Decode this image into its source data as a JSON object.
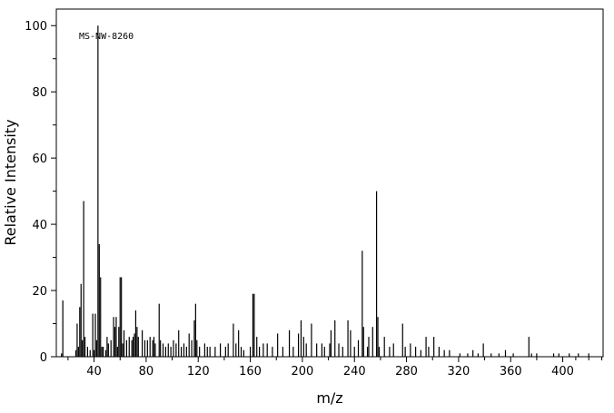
{
  "chart_data": {
    "type": "stem",
    "annotation": "MS-NW-8260",
    "xlabel": "m/z",
    "ylabel": "Relative Intensity",
    "color": "#000000",
    "xlim": [
      11,
      431
    ],
    "ylim": [
      0,
      105
    ],
    "xticks": [
      40,
      80,
      120,
      160,
      200,
      240,
      280,
      320,
      360,
      400
    ],
    "xminorticks": [
      20,
      60,
      100,
      140,
      180,
      220,
      260,
      300,
      340,
      380,
      410,
      420,
      430
    ],
    "yticks": [
      0,
      20,
      40,
      60,
      80,
      100
    ],
    "yminorticks": [
      10,
      30,
      50,
      70,
      90
    ],
    "x": [
      15,
      16,
      26,
      27,
      28,
      29,
      30,
      31,
      32,
      33,
      35,
      37,
      39,
      40,
      41,
      42,
      43,
      44,
      45,
      46,
      47,
      49,
      50,
      51,
      53,
      55,
      56,
      57,
      58,
      59,
      60,
      61,
      62,
      63,
      65,
      67,
      69,
      70,
      71,
      72,
      73,
      74,
      77,
      79,
      81,
      83,
      85,
      86,
      87,
      90,
      91,
      93,
      95,
      97,
      99,
      101,
      103,
      105,
      107,
      109,
      111,
      113,
      115,
      117,
      118,
      119,
      121,
      125,
      127,
      129,
      133,
      137,
      141,
      143,
      147,
      149,
      151,
      153,
      155,
      160,
      162,
      163,
      165,
      167,
      170,
      173,
      177,
      181,
      185,
      190,
      193,
      197,
      199,
      201,
      203,
      207,
      211,
      215,
      217,
      221,
      222,
      225,
      228,
      231,
      235,
      237,
      240,
      243,
      246,
      247,
      250,
      251,
      254,
      257,
      258,
      259,
      263,
      267,
      270,
      277,
      279,
      283,
      287,
      291,
      295,
      297,
      301,
      305,
      309,
      313,
      321,
      327,
      331,
      335,
      339,
      345,
      351,
      356,
      362,
      374,
      376,
      380,
      393,
      397,
      405,
      412,
      420
    ],
    "values": [
      1,
      17,
      2,
      10,
      3,
      15,
      22,
      5,
      47,
      6,
      3,
      2,
      13,
      2,
      13,
      5,
      100,
      34,
      24,
      3,
      3,
      2,
      6,
      4,
      5,
      12,
      9,
      12,
      3,
      9,
      24,
      24,
      4,
      8,
      5,
      6,
      5,
      6,
      7,
      14,
      9,
      6,
      8,
      5,
      5,
      6,
      5,
      6,
      4,
      16,
      5,
      4,
      3,
      4,
      3,
      5,
      4,
      8,
      3,
      4,
      3,
      7,
      5,
      11,
      16,
      5,
      3,
      4,
      3,
      3,
      3,
      4,
      3,
      4,
      10,
      4,
      8,
      3,
      2,
      3,
      19,
      19,
      6,
      3,
      4,
      4,
      3,
      7,
      3,
      8,
      3,
      7,
      11,
      6,
      4,
      10,
      4,
      4,
      3,
      4,
      8,
      11,
      4,
      3,
      11,
      8,
      3,
      5,
      32,
      9,
      3,
      6,
      9,
      50,
      12,
      3,
      6,
      3,
      4,
      10,
      3,
      4,
      3,
      2,
      6,
      3,
      6,
      3,
      2,
      2,
      1,
      1,
      2,
      1,
      4,
      1,
      1,
      2,
      1,
      6,
      1,
      1,
      1,
      1,
      1,
      1,
      1
    ]
  }
}
